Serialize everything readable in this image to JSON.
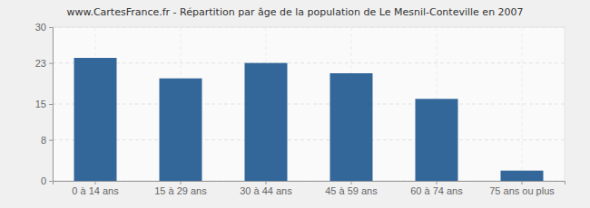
{
  "chart_data": {
    "type": "bar",
    "title": "www.CartesFrance.fr - Répartition par âge de la population de Le Mesnil-Conteville en 2007",
    "categories": [
      "0 à 14 ans",
      "15 à 29 ans",
      "30 à 44 ans",
      "45 à 59 ans",
      "60 à 74 ans",
      "75 ans ou plus"
    ],
    "values": [
      24,
      20,
      23,
      21,
      16,
      2
    ],
    "color": "#336699",
    "ylim": [
      0,
      30
    ],
    "yticks": [
      0,
      8,
      15,
      23,
      30
    ],
    "grid": true
  }
}
